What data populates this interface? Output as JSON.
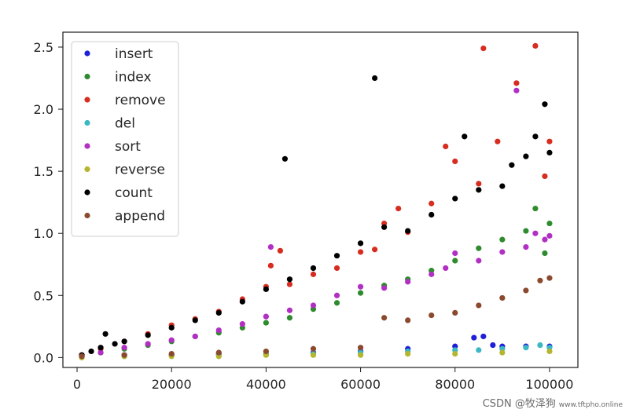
{
  "chart_data": {
    "type": "scatter",
    "xlim": [
      -3000,
      106000
    ],
    "ylim": [
      -0.08,
      2.62
    ],
    "xticks": [
      0,
      20000,
      40000,
      60000,
      80000,
      100000
    ],
    "yticks": [
      0.0,
      0.5,
      1.0,
      1.5,
      2.0,
      2.5
    ],
    "xtick_labels": [
      "0",
      "20000",
      "40000",
      "60000",
      "80000",
      "100000"
    ],
    "ytick_labels": [
      "0.0",
      "0.5",
      "1.0",
      "1.5",
      "2.0",
      "2.5"
    ],
    "grid": false,
    "legend_position": "top-left",
    "series": [
      {
        "name": "insert",
        "color": "#1f1fd8",
        "x": [
          1000,
          10000,
          20000,
          30000,
          40000,
          50000,
          60000,
          70000,
          80000,
          84000,
          86000,
          88000,
          90000,
          95000,
          100000
        ],
        "y": [
          0.01,
          0.02,
          0.02,
          0.03,
          0.03,
          0.04,
          0.05,
          0.07,
          0.09,
          0.16,
          0.17,
          0.1,
          0.09,
          0.09,
          0.09
        ]
      },
      {
        "name": "index",
        "color": "#2e8b2e",
        "x": [
          1000,
          5000,
          10000,
          15000,
          20000,
          25000,
          30000,
          35000,
          40000,
          45000,
          50000,
          55000,
          60000,
          65000,
          70000,
          75000,
          80000,
          85000,
          90000,
          95000,
          97000,
          99000,
          100000
        ],
        "y": [
          0.01,
          0.04,
          0.07,
          0.1,
          0.13,
          0.17,
          0.2,
          0.24,
          0.28,
          0.32,
          0.39,
          0.44,
          0.52,
          0.58,
          0.63,
          0.7,
          0.78,
          0.88,
          0.95,
          1.02,
          1.2,
          0.84,
          1.08
        ]
      },
      {
        "name": "remove",
        "color": "#d62d20",
        "x": [
          1000,
          5000,
          10000,
          15000,
          20000,
          25000,
          30000,
          35000,
          40000,
          41000,
          43000,
          45000,
          50000,
          55000,
          60000,
          63000,
          65000,
          68000,
          70000,
          75000,
          78000,
          80000,
          85000,
          86000,
          89000,
          93000,
          97000,
          99000,
          100000
        ],
        "y": [
          0.02,
          0.07,
          0.13,
          0.19,
          0.26,
          0.31,
          0.37,
          0.47,
          0.57,
          0.74,
          0.86,
          0.59,
          0.67,
          0.72,
          0.85,
          0.87,
          1.08,
          1.2,
          1.01,
          1.24,
          1.7,
          1.58,
          1.4,
          2.49,
          1.74,
          2.21,
          2.51,
          1.46,
          1.74
        ]
      },
      {
        "name": "del",
        "color": "#3bb8c4",
        "x": [
          1000,
          10000,
          20000,
          30000,
          40000,
          50000,
          60000,
          70000,
          80000,
          85000,
          90000,
          95000,
          98000,
          100000
        ],
        "y": [
          0.01,
          0.01,
          0.02,
          0.02,
          0.03,
          0.03,
          0.04,
          0.05,
          0.06,
          0.06,
          0.07,
          0.08,
          0.1,
          0.08
        ]
      },
      {
        "name": "sort",
        "color": "#b22fc4",
        "x": [
          1000,
          5000,
          10000,
          15000,
          20000,
          25000,
          30000,
          35000,
          40000,
          41000,
          45000,
          50000,
          55000,
          60000,
          65000,
          70000,
          75000,
          78000,
          80000,
          85000,
          90000,
          93000,
          95000,
          97000,
          99000,
          100000
        ],
        "y": [
          0.01,
          0.04,
          0.08,
          0.11,
          0.14,
          0.17,
          0.22,
          0.27,
          0.33,
          0.89,
          0.38,
          0.42,
          0.5,
          0.57,
          0.56,
          0.61,
          0.67,
          0.72,
          0.84,
          0.78,
          0.85,
          2.15,
          0.89,
          1.0,
          0.95,
          0.98
        ]
      },
      {
        "name": "reverse",
        "color": "#b5b52f",
        "x": [
          1000,
          10000,
          20000,
          30000,
          40000,
          50000,
          60000,
          70000,
          80000,
          90000,
          100000
        ],
        "y": [
          0.0,
          0.01,
          0.01,
          0.01,
          0.02,
          0.02,
          0.02,
          0.03,
          0.03,
          0.04,
          0.05
        ]
      },
      {
        "name": "count",
        "color": "#000000",
        "x": [
          1000,
          3000,
          5000,
          6000,
          8000,
          10000,
          15000,
          20000,
          25000,
          30000,
          35000,
          40000,
          44000,
          45000,
          50000,
          55000,
          60000,
          63000,
          65000,
          70000,
          75000,
          80000,
          82000,
          85000,
          90000,
          92000,
          95000,
          97000,
          99000,
          100000
        ],
        "y": [
          0.02,
          0.05,
          0.08,
          0.19,
          0.11,
          0.13,
          0.18,
          0.24,
          0.3,
          0.36,
          0.45,
          0.55,
          1.6,
          0.63,
          0.72,
          0.82,
          0.92,
          2.25,
          1.05,
          1.02,
          1.15,
          1.28,
          1.78,
          1.35,
          1.38,
          1.55,
          1.62,
          1.78,
          2.04,
          1.65
        ]
      },
      {
        "name": "append",
        "color": "#8b4a2e",
        "x": [
          1000,
          10000,
          20000,
          30000,
          40000,
          50000,
          60000,
          65000,
          70000,
          75000,
          80000,
          85000,
          90000,
          95000,
          98000,
          100000
        ],
        "y": [
          0.01,
          0.02,
          0.03,
          0.04,
          0.05,
          0.07,
          0.08,
          0.32,
          0.3,
          0.34,
          0.36,
          0.42,
          0.48,
          0.54,
          0.62,
          0.64
        ]
      }
    ]
  },
  "watermark": {
    "main": "CSDN @牧泽狗",
    "site": "www.tftpho.online"
  }
}
